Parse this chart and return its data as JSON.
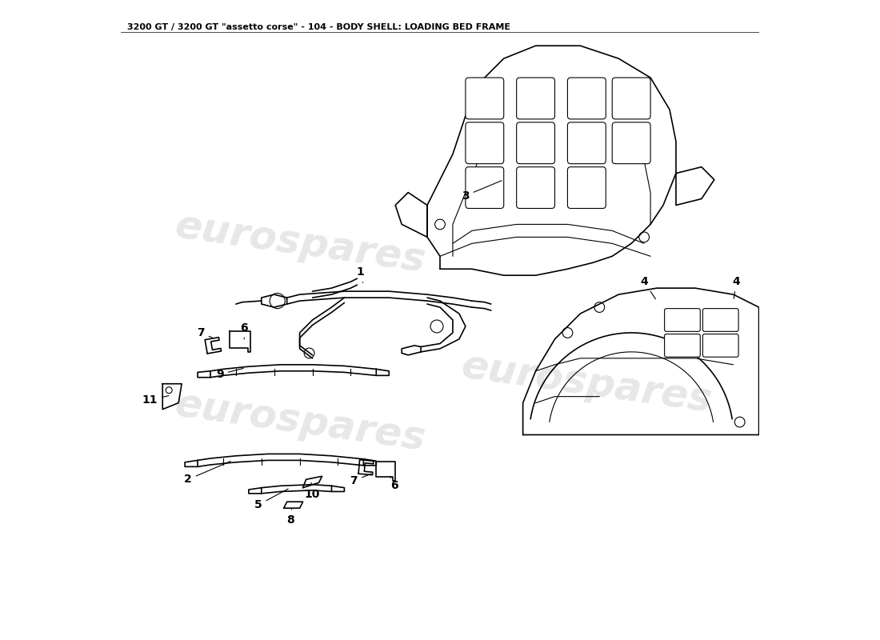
{
  "title": "3200 GT / 3200 GT \"assetto corse\" - 104 - BODY SHELL: LOADING BED FRAME",
  "title_fontsize": 8,
  "background_color": "#ffffff",
  "line_color": "#000000",
  "watermark_color": "#d0d0d0",
  "watermark_text": "eurospares",
  "fig_width": 11.0,
  "fig_height": 8.0,
  "dpi": 100
}
